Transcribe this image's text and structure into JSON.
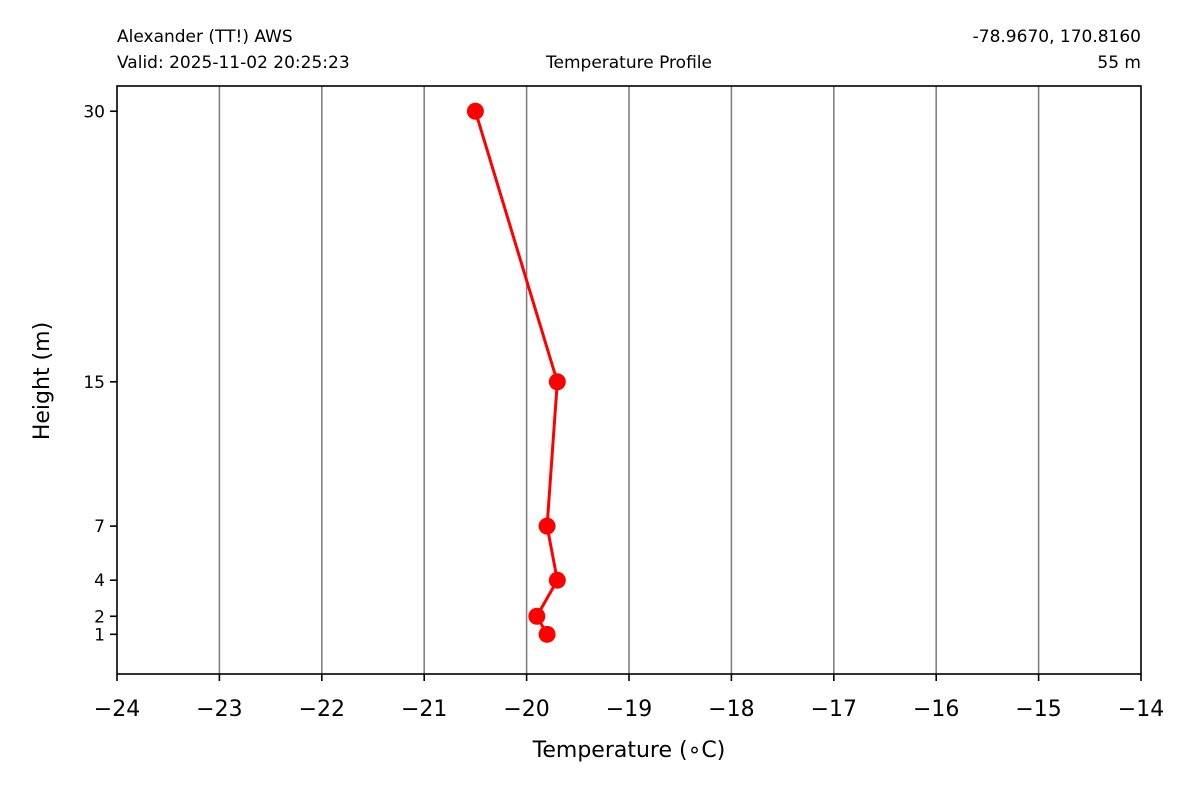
{
  "header": {
    "station": "Alexander (TT!) AWS",
    "valid": "Valid: 2025-11-02 20:25:23",
    "title": "Temperature Profile",
    "coords": "-78.9670, 170.8160",
    "elevation": "55 m"
  },
  "chart_data": {
    "type": "line",
    "title": "Temperature Profile",
    "xlabel": "Temperature (∘C)",
    "ylabel": "Height (m)",
    "xlim": [
      -24,
      -14
    ],
    "ylim": [
      -1.2,
      31.4
    ],
    "x_ticks": [
      "−24",
      "−23",
      "−22",
      "−21",
      "−20",
      "−19",
      "−18",
      "−17",
      "−16",
      "−15",
      "−14"
    ],
    "x_tick_values": [
      -24,
      -23,
      -22,
      -21,
      -20,
      -19,
      -18,
      -17,
      -16,
      -15,
      -14
    ],
    "y_ticks": [
      1,
      2,
      4,
      7,
      15,
      30
    ],
    "y_tick_labels": [
      "1",
      "2",
      "4",
      "7",
      "15",
      "30"
    ],
    "grid": "vertical",
    "series": [
      {
        "color": "#ff0000",
        "points": [
          {
            "height": 1,
            "temperature": -19.8
          },
          {
            "height": 2,
            "temperature": -19.9
          },
          {
            "height": 4,
            "temperature": -19.7
          },
          {
            "height": 7,
            "temperature": -19.8
          },
          {
            "height": 15,
            "temperature": -19.7
          },
          {
            "height": 30,
            "temperature": -20.5
          }
        ]
      }
    ]
  }
}
